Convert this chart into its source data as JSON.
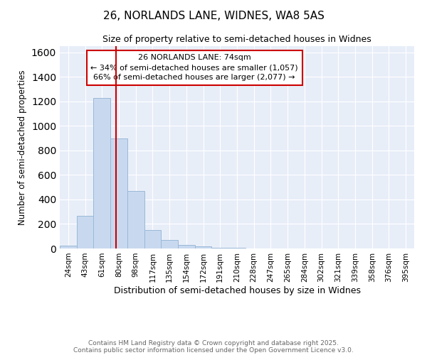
{
  "title1": "26, NORLANDS LANE, WIDNES, WA8 5AS",
  "title2": "Size of property relative to semi-detached houses in Widnes",
  "xlabel": "Distribution of semi-detached houses by size in Widnes",
  "ylabel": "Number of semi-detached properties",
  "categories": [
    "24sqm",
    "43sqm",
    "61sqm",
    "80sqm",
    "98sqm",
    "117sqm",
    "135sqm",
    "154sqm",
    "172sqm",
    "191sqm",
    "210sqm",
    "228sqm",
    "247sqm",
    "265sqm",
    "284sqm",
    "302sqm",
    "321sqm",
    "339sqm",
    "358sqm",
    "376sqm",
    "395sqm"
  ],
  "values": [
    25,
    265,
    1230,
    900,
    470,
    150,
    70,
    27,
    15,
    5,
    5,
    0,
    0,
    0,
    0,
    0,
    0,
    0,
    0,
    0,
    0
  ],
  "bar_color": "#c8d9ef",
  "bar_edge_color": "#9ab8d8",
  "red_line_x": 2.83,
  "annotation_text": "26 NORLANDS LANE: 74sqm\n← 34% of semi-detached houses are smaller (1,057)\n66% of semi-detached houses are larger (2,077) →",
  "annotation_box_color": "#ffffff",
  "annotation_box_edge_color": "#cc0000",
  "footer1": "Contains HM Land Registry data © Crown copyright and database right 2025.",
  "footer2": "Contains public sector information licensed under the Open Government Licence v3.0.",
  "ylim": [
    0,
    1650
  ],
  "background_color": "#ffffff",
  "plot_bg_color": "#e8eef8",
  "grid_color": "#ffffff"
}
